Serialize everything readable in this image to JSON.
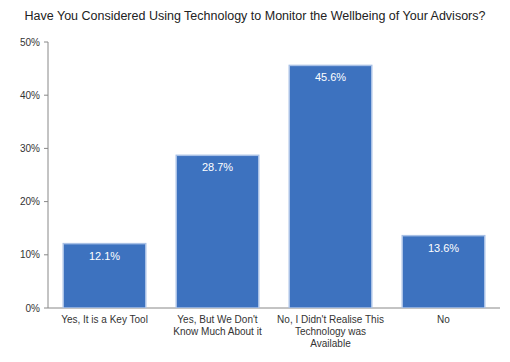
{
  "chart_data": {
    "type": "bar",
    "title": "Have You Considered Using Technology to Monitor the Wellbeing of Your Advisors?",
    "categories": [
      "Yes, It is a Key Tool",
      "Yes, But We Don't Know Much About it",
      "No, I Didn't Realise This Technology was Available",
      "No"
    ],
    "values": [
      12.1,
      28.7,
      45.6,
      13.6
    ],
    "value_labels": [
      "12.1%",
      "28.7%",
      "45.6%",
      "13.6%"
    ],
    "color": "#3d72bf",
    "ylim": [
      0,
      50
    ],
    "yticks": [
      {
        "value": 0,
        "label": "0%"
      },
      {
        "value": 10,
        "label": "10%"
      },
      {
        "value": 20,
        "label": "20%"
      },
      {
        "value": 30,
        "label": "30%"
      },
      {
        "value": 40,
        "label": "40%"
      },
      {
        "value": 50,
        "label": "50%"
      }
    ],
    "grid": false,
    "data_labels": true
  }
}
